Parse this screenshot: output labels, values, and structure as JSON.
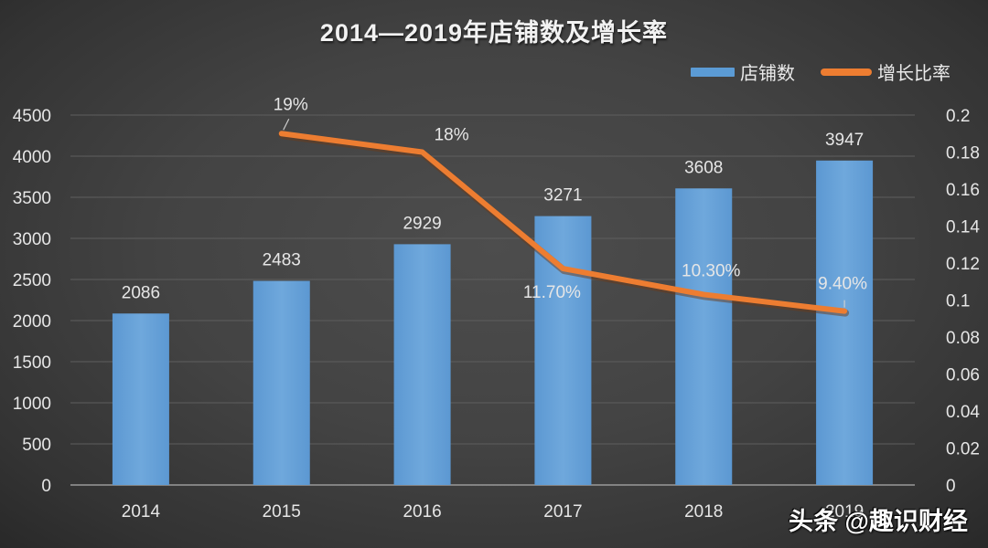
{
  "title": "2014—2019年店铺数及增长率",
  "legend": [
    {
      "label": "店铺数",
      "type": "bar",
      "color": "#5b9bd5"
    },
    {
      "label": "增长比率",
      "type": "line",
      "color": "#ed7d31"
    }
  ],
  "watermark": "头条 @趣识财经",
  "colors": {
    "bar": "#6fa8dc",
    "line": "#ed7d31",
    "grid": "#5e5e5e",
    "axis": "#9a9a9a",
    "text": "#e6e6e6"
  },
  "chart_data": {
    "type": "bar+line",
    "title": "2014—2019年店铺数及增长率",
    "categories": [
      "2014",
      "2015",
      "2016",
      "2017",
      "2018",
      "2019"
    ],
    "series": [
      {
        "name": "店铺数",
        "type": "bar",
        "axis": "left",
        "values": [
          2086,
          2483,
          2929,
          3271,
          3608,
          3947
        ],
        "labels": [
          "2086",
          "2483",
          "2929",
          "3271",
          "3608",
          "3947"
        ]
      },
      {
        "name": "增长比率",
        "type": "line",
        "axis": "right",
        "values": [
          null,
          0.19,
          0.18,
          0.117,
          0.103,
          0.094
        ],
        "labels": [
          "",
          "19%",
          "18%",
          "11.70%",
          "10.30%",
          "9.40%"
        ]
      }
    ],
    "left_axis": {
      "min": 0,
      "max": 4500,
      "step": 500,
      "ticks": [
        "0",
        "500",
        "1000",
        "1500",
        "2000",
        "2500",
        "3000",
        "3500",
        "4000",
        "4500"
      ]
    },
    "right_axis": {
      "min": 0,
      "max": 0.2,
      "step": 0.02,
      "ticks": [
        "0",
        "0.02",
        "0.04",
        "0.06",
        "0.08",
        "0.1",
        "0.12",
        "0.14",
        "0.16",
        "0.18",
        "0.2"
      ]
    },
    "xlabel": "",
    "ylabel": "",
    "y2label": "",
    "grid": true,
    "legend_position": "top-right"
  }
}
